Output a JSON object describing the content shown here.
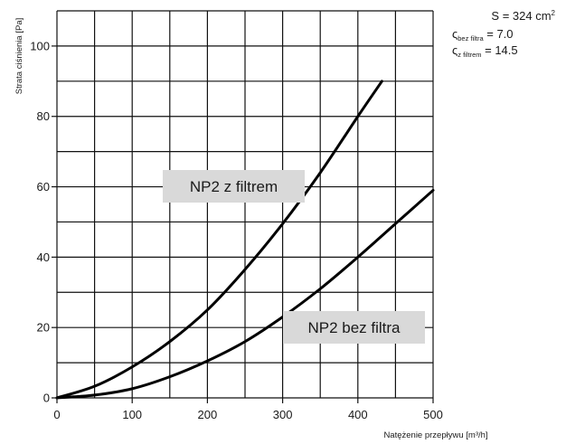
{
  "chart_data": {
    "type": "line",
    "xlabel": "Natężenie przepływu [m³/h]",
    "ylabel": "Strata ciśnienia [Pa]",
    "xlim": [
      0,
      500
    ],
    "ylim": [
      0,
      110
    ],
    "x_ticks": [
      "0",
      "100",
      "200",
      "300",
      "400",
      "500"
    ],
    "y_ticks": [
      "0",
      "20",
      "40",
      "60",
      "80",
      "100"
    ],
    "grid": true,
    "series": [
      {
        "name": "NP2 z filtrem",
        "x": [
          0,
          50,
          100,
          150,
          200,
          250,
          300,
          350,
          400,
          432
        ],
        "y": [
          0,
          3.3,
          8.8,
          16,
          25,
          36.5,
          49.5,
          64,
          80,
          90
        ]
      },
      {
        "name": "NP2 bez filtra",
        "x": [
          0,
          50,
          100,
          150,
          200,
          250,
          300,
          350,
          400,
          450,
          500
        ],
        "y": [
          0,
          0.8,
          2.6,
          6,
          10.5,
          16,
          23,
          31,
          40,
          49.5,
          59
        ]
      }
    ],
    "annotations": {
      "area": "S = 324 cm",
      "area_sup": "2",
      "zeta_no_filter_sym": "ς",
      "zeta_no_filter_sub": "bez filtra",
      "zeta_no_filter_val": " = 7.0",
      "zeta_filter_sym": "ς",
      "zeta_filter_sub": "z filtrem",
      "zeta_filter_val": " = 14.5"
    }
  }
}
